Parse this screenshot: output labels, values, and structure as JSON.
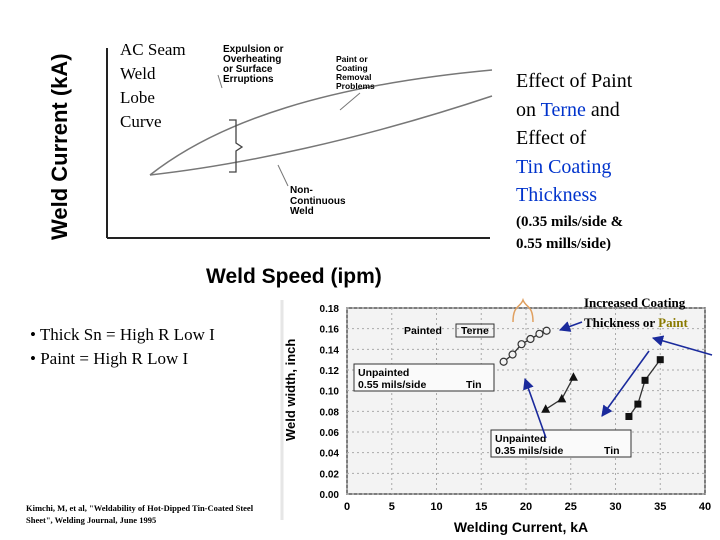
{
  "top_diagram": {
    "ylabel": "Weld Current (kA)",
    "xlabel": "Weld Speed (ipm)",
    "title_lines": [
      "AC Seam",
      "Weld",
      "Lobe",
      "Curve"
    ],
    "annotation_expulsion": [
      "Expulsion or",
      "Overheating",
      "or Surface",
      "Erruptions"
    ],
    "annotation_paint": [
      "Paint or",
      "Coating",
      "Removal",
      "Problems"
    ],
    "annotation_noncontinuous": [
      "Non-",
      "Continuous",
      "Weld"
    ]
  },
  "effect_title": {
    "line1": "Effect of Paint",
    "line2_prefix": "on ",
    "line2_colored": "Terne",
    "line2_suffix": " and",
    "line3": "Effect of",
    "line4": "Tin Coating",
    "line5": "Thickness",
    "colored_color": "#0033cc"
  },
  "effect_sub": {
    "line1": "(0.35 mils/side &",
    "line2": "0.55 mills/side)"
  },
  "bullets": [
    "• Thick Sn = High R Low I",
    "• Paint = High R Low I"
  ],
  "citation": "Kimchi, M, et al, \"Weldability of Hot-Dipped Tin-Coated Steel Sheet\", Welding Journal, June 1995",
  "increased": {
    "line1": "Increased Coating",
    "line2_prefix": "Thickness or ",
    "line2_colored": "Paint",
    "colored_color": "#8a7a00"
  },
  "chart_data": {
    "type": "scatter",
    "xlabel": "Welding Current, kA",
    "ylabel": "Weld width, inch",
    "x_ticks": [
      "0",
      "5",
      "10",
      "15",
      "20",
      "25",
      "30",
      "35",
      "40"
    ],
    "y_ticks": [
      "0.18",
      "0.16",
      "0.14",
      "0.12",
      "0.10",
      "0.08",
      "0.06",
      "0.04",
      "0.02",
      "0.00"
    ],
    "xlim": [
      0,
      40
    ],
    "ylim": [
      0,
      0.18
    ],
    "grid": true,
    "series": [
      {
        "name": "Painted Terne",
        "marker": "open-circle",
        "x": [
          17.5,
          18.5,
          19.5,
          20.5,
          21.5,
          22.3
        ],
        "y": [
          0.128,
          0.135,
          0.145,
          0.15,
          0.155,
          0.158
        ]
      },
      {
        "name": "Unpainted 0.55 mils/side Tin",
        "marker": "filled-triangle",
        "x": [
          22.2,
          24.0,
          25.3
        ],
        "y": [
          0.082,
          0.092,
          0.113
        ]
      },
      {
        "name": "Unpainted 0.35 mils/side Tin",
        "marker": "filled-square",
        "x": [
          31.5,
          32.5,
          33.3,
          35.0
        ],
        "y": [
          0.075,
          0.087,
          0.11,
          0.13
        ]
      }
    ],
    "legend_labels": {
      "painted_a": "Painted",
      "painted_b": "Terne",
      "unp055_a": "Unpainted",
      "unp055_b": "0.55  mils/side",
      "unp055_c": "Tin",
      "unp035_a": "Unpainted",
      "unp035_b": "0.35  mils/side",
      "unp035_c": "Tin"
    }
  },
  "colors": {
    "arrow_blue": "#1a2a9c",
    "bracket_orange": "#e0a060",
    "text_blue": "#0033cc"
  }
}
